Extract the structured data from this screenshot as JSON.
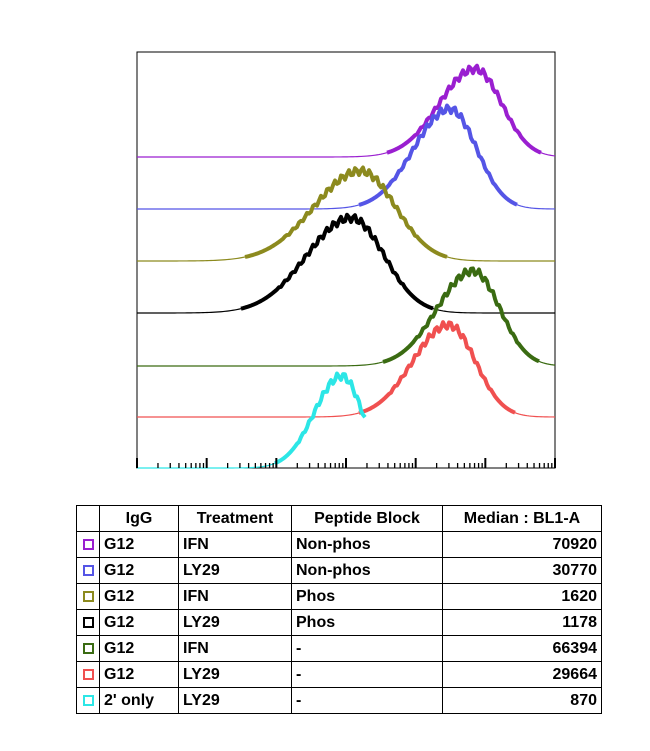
{
  "chart_data": {
    "type": "line",
    "xscale": "log",
    "xlim": [
      1,
      1000000
    ],
    "legend_placement": "bottom",
    "grid": false,
    "series": [
      {
        "name": "G12 IFN Non-phos",
        "color": "#9a1fd0",
        "median": 70920
      },
      {
        "name": "G12 LY29 Non-phos",
        "color": "#5555e6",
        "median": 30770
      },
      {
        "name": "G12 IFN Phos",
        "color": "#8c8a1e",
        "median": 1620
      },
      {
        "name": "G12 LY29 Phos",
        "color": "#000000",
        "median": 1178
      },
      {
        "name": "G12 IFN -",
        "color": "#3a6b12",
        "median": 66394
      },
      {
        "name": "G12 LY29 -",
        "color": "#f05050",
        "median": 29664
      },
      {
        "name": "2' only LY29 -",
        "color": "#2ce6e6",
        "median": 870
      }
    ]
  },
  "table": {
    "headers": [
      "IgG",
      "Treatment",
      "Peptide Block",
      "Median : BL1-A"
    ],
    "rows": [
      {
        "color": "#9a1fd0",
        "igg": "G12",
        "treatment": "IFN",
        "peptide": "Non-phos",
        "median": "70920"
      },
      {
        "color": "#5555e6",
        "igg": "G12",
        "treatment": "LY29",
        "peptide": "Non-phos",
        "median": "30770"
      },
      {
        "color": "#8c8a1e",
        "igg": "G12",
        "treatment": "IFN",
        "peptide": "Phos",
        "median": "1620"
      },
      {
        "color": "#000000",
        "igg": "G12",
        "treatment": "LY29",
        "peptide": "Phos",
        "median": "1178"
      },
      {
        "color": "#3a6b12",
        "igg": "G12",
        "treatment": "IFN",
        "peptide": "-",
        "median": "66394"
      },
      {
        "color": "#f05050",
        "igg": "G12",
        "treatment": "LY29",
        "peptide": "-",
        "median": "29664"
      },
      {
        "color": "#2ce6e6",
        "igg": "2' only",
        "treatment": "LY29",
        "peptide": "-",
        "median": "870"
      }
    ]
  }
}
